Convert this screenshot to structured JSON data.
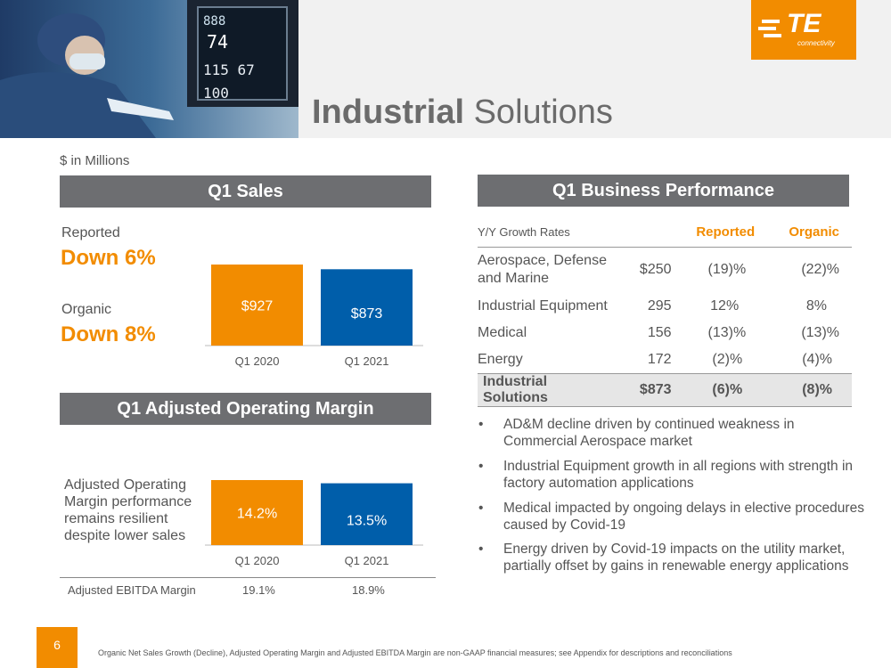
{
  "header": {
    "title_bold": "Industrial",
    "title_rest": " Solutions",
    "units": "$ in Millions",
    "logo_text": "TE",
    "logo_sub": "connectivity",
    "brand_color": "#f28c00",
    "blue_color": "#005eaa"
  },
  "sales": {
    "heading": "Q1 Sales",
    "reported_label": "Reported",
    "reported_value": "Down 6%",
    "organic_label": "Organic",
    "organic_value": "Down 8%"
  },
  "margin": {
    "heading": "Q1 Adjusted Operating Margin",
    "note": "Adjusted Operating Margin performance remains resilient despite lower sales",
    "ebitda_label": "Adjusted EBITDA Margin",
    "ebitda_values": [
      "19.1%",
      "18.9%"
    ]
  },
  "performance": {
    "heading": "Q1 Business Performance",
    "columns": [
      "Y/Y Growth Rates",
      "",
      "Reported",
      "Organic"
    ],
    "rows": [
      {
        "name": "Aerospace, Defense and Marine",
        "sales": "$250",
        "reported": "(19)%",
        "organic": "(22)%"
      },
      {
        "name": "Industrial Equipment",
        "sales": "295",
        "reported": "12%",
        "organic": "8%"
      },
      {
        "name": "Medical",
        "sales": "156",
        "reported": "(13)%",
        "organic": "(13)%"
      },
      {
        "name": "Energy",
        "sales": "172",
        "reported": "(2)%",
        "organic": "(4)%"
      }
    ],
    "total": {
      "name": "Industrial Solutions",
      "sales": "$873",
      "reported": "(6)%",
      "organic": "(8)%"
    }
  },
  "bullets": [
    "AD&M decline driven by continued weakness in Commercial Aerospace market",
    "Industrial Equipment growth in all regions with strength in factory automation applications",
    "Medical impacted by ongoing delays in elective procedures caused by Covid-19",
    "Energy driven by Covid-19 impacts on the utility market, partially offset by gains in renewable energy applications"
  ],
  "footer": {
    "page_number": "6",
    "note": "Organic Net Sales Growth (Decline), Adjusted Operating Margin and Adjusted EBITDA Margin are non-GAAP financial measures; see Appendix for descriptions and reconciliations"
  },
  "chart_data": [
    {
      "type": "bar",
      "categories": [
        "Q1 2020",
        "Q1 2021"
      ],
      "values": [
        927,
        873
      ],
      "labels": [
        "$927",
        "$873"
      ],
      "colors": [
        "#f28c00",
        "#005eaa"
      ],
      "title": "Q1 Sales"
    },
    {
      "type": "bar",
      "categories": [
        "Q1 2020",
        "Q1 2021"
      ],
      "values": [
        14.2,
        13.5
      ],
      "labels": [
        "14.2%",
        "13.5%"
      ],
      "colors": [
        "#f28c00",
        "#005eaa"
      ],
      "title": "Q1 Adjusted Operating Margin"
    }
  ]
}
